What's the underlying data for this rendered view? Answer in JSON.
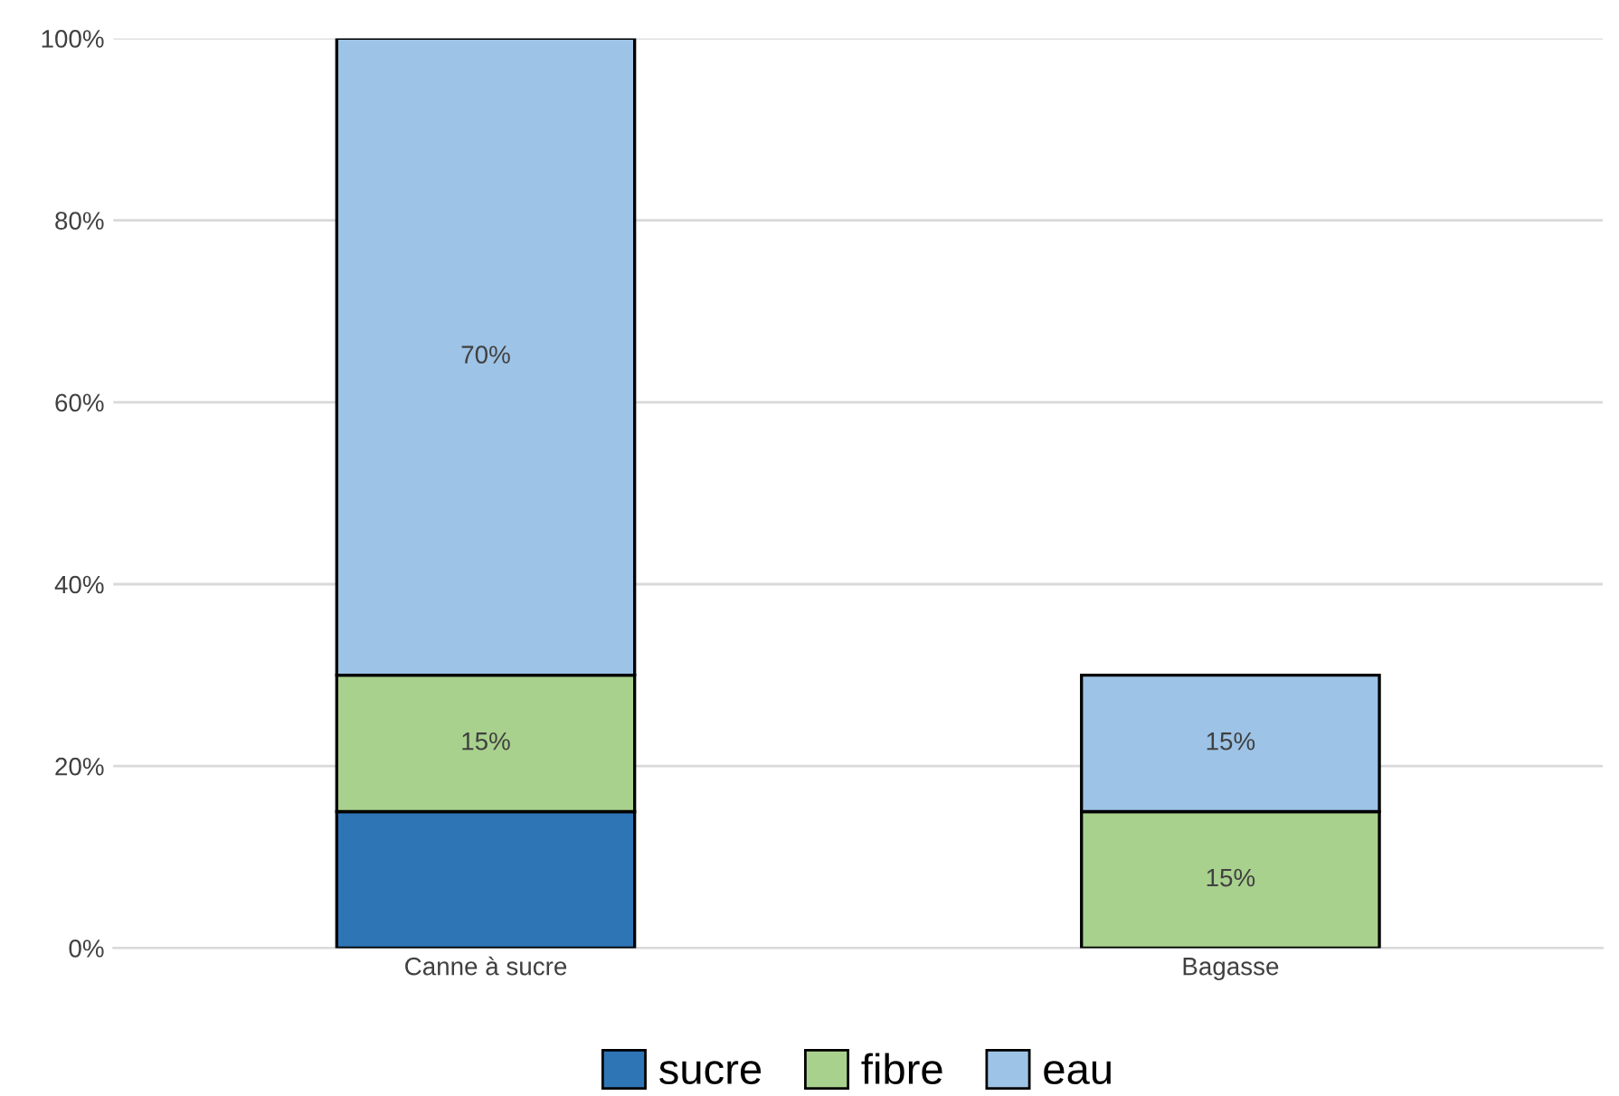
{
  "chart_data": {
    "type": "bar",
    "stacked": true,
    "categories": [
      "Canne à sucre",
      "Bagasse"
    ],
    "series": [
      {
        "name": "sucre",
        "color": "#2e75b6",
        "values": [
          15,
          null
        ],
        "value_labels": [
          null,
          null
        ]
      },
      {
        "name": "fibre",
        "color": "#a9d18e",
        "values": [
          15,
          15
        ],
        "value_labels": [
          "15%",
          "15%"
        ]
      },
      {
        "name": "eau",
        "color": "#9dc3e6",
        "values": [
          70,
          15
        ],
        "value_labels": [
          "70%",
          "15%"
        ]
      }
    ],
    "ylim": [
      0,
      100
    ],
    "yticks": [
      {
        "value": 0,
        "label": "0%"
      },
      {
        "value": 20,
        "label": "20%"
      },
      {
        "value": 40,
        "label": "40%"
      },
      {
        "value": 60,
        "label": "60%"
      },
      {
        "value": 80,
        "label": "80%"
      },
      {
        "value": 100,
        "label": "100%"
      }
    ],
    "grid": "y",
    "legend": "bottom"
  }
}
